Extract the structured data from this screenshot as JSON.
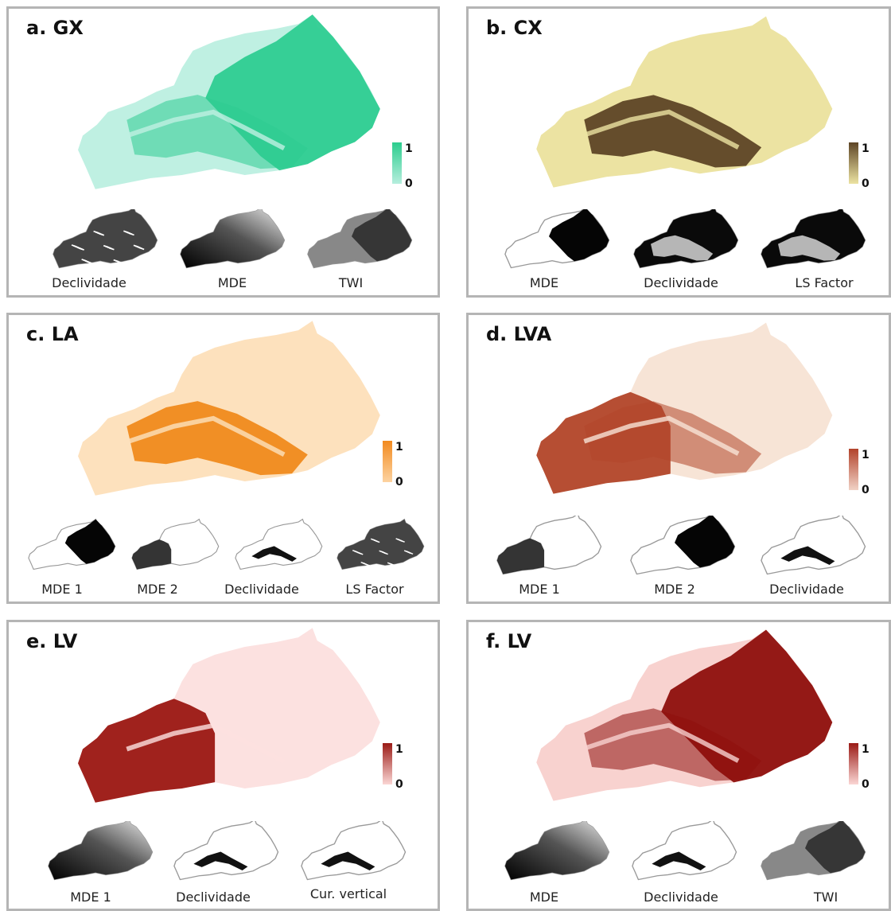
{
  "panels": [
    {
      "id": "a",
      "title": "a. GX",
      "hi": "#2ecc91",
      "lo": "#bff0e2",
      "legend": {
        "max": "1",
        "min": "0",
        "from": "#b6eedd",
        "to": "#2ccd8e"
      },
      "thumbs": [
        {
          "label": "Declividade",
          "style": "speckle"
        },
        {
          "label": "MDE",
          "style": "gradient"
        },
        {
          "label": "TWI",
          "style": "gray"
        }
      ]
    },
    {
      "id": "b",
      "title": "b. CX",
      "hi": "#5e4526",
      "lo": "#ece3a2",
      "legend": {
        "max": "1",
        "min": "0",
        "from": "#ece3a2",
        "to": "#5e4526"
      },
      "thumbs": [
        {
          "label": "MDE",
          "style": "half"
        },
        {
          "label": "Declividade",
          "style": "black"
        },
        {
          "label": "LS Factor",
          "style": "black"
        }
      ]
    },
    {
      "id": "c",
      "title": "c. LA",
      "hi": "#f08a1c",
      "lo": "#fde1bd",
      "legend": {
        "max": "1",
        "min": "0",
        "from": "#fdd3a1",
        "to": "#f28a1e"
      },
      "thumbs": [
        {
          "label": "MDE 1",
          "style": "half"
        },
        {
          "label": "MDE 2",
          "style": "corner"
        },
        {
          "label": "Declividade",
          "style": "outline"
        },
        {
          "label": "LS Factor",
          "style": "speckle"
        }
      ]
    },
    {
      "id": "d",
      "title": "d. LVA",
      "hi": "#b2462a",
      "lo": "#f7e4d6",
      "legend": {
        "max": "1",
        "min": "0",
        "from": "#f1d2c6",
        "to": "#b2432b"
      },
      "thumbs": [
        {
          "label": "MDE 1",
          "style": "corner"
        },
        {
          "label": "MDE 2",
          "style": "half"
        },
        {
          "label": "Declividade",
          "style": "outline"
        }
      ]
    },
    {
      "id": "e",
      "title": "e. LV",
      "hi": "#9b1712",
      "lo": "#fce1e0",
      "legend": {
        "max": "1",
        "min": "0",
        "from": "#fbd6d4",
        "to": "#9a1b16"
      },
      "thumbs": [
        {
          "label": "MDE 1",
          "style": "gradient"
        },
        {
          "label": "Declividade",
          "style": "outline"
        },
        {
          "label": "Cur. vertical",
          "style": "outline"
        }
      ]
    },
    {
      "id": "f",
      "title": "f. LV",
      "hi": "#8e0f0c",
      "lo": "#f8d2cf",
      "legend": {
        "max": "1",
        "min": "0",
        "from": "#fbd6d4",
        "to": "#9a1b16"
      },
      "thumbs": [
        {
          "label": "MDE",
          "style": "gradient"
        },
        {
          "label": "Declividade",
          "style": "outline"
        },
        {
          "label": "TWI",
          "style": "gray"
        }
      ]
    }
  ]
}
